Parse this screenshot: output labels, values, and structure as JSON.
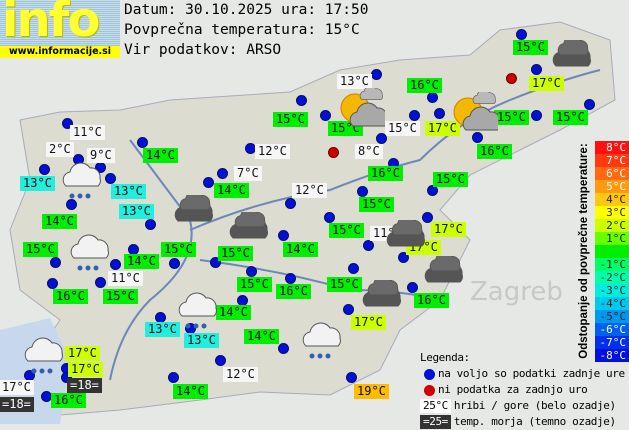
{
  "logo": {
    "text": "info",
    "url": "www.informacije.si"
  },
  "header": {
    "date_line": "Datum: 30.10.2025 ura: 17:50",
    "avg_line": "Povprečna temperatura: 15°C",
    "source_line": "Vir podatkov: ARSO"
  },
  "colors": {
    "green": "#00ee00",
    "yellowgreen": "#ccff00",
    "cyan": "#22eedd",
    "white": "#f6f6f6",
    "orange": "#ffbb00",
    "dark": "#333333",
    "station_dot": "#0010d8",
    "no_data_dot": "#d00000"
  },
  "stations": [
    {
      "temp": "15°C",
      "bg": "green"
    },
    {
      "temp": "17°C",
      "bg": "yellowgreen"
    },
    {
      "temp": "15°C",
      "bg": "green"
    },
    {
      "temp": "15°C",
      "bg": "green"
    },
    {
      "temp": "13°C",
      "bg": "white"
    },
    {
      "temp": "16°C",
      "bg": "green"
    },
    {
      "temp": "15°C",
      "bg": "green"
    },
    {
      "temp": "15°C",
      "bg": "white"
    },
    {
      "temp": "17°C",
      "bg": "yellowgreen"
    },
    {
      "temp": "15°C",
      "bg": "green"
    },
    {
      "temp": "16°C",
      "bg": "green"
    },
    {
      "temp": "8°C",
      "bg": "white"
    },
    {
      "temp": "16°C",
      "bg": "green"
    },
    {
      "temp": "15°C",
      "bg": "green"
    },
    {
      "temp": "11°C",
      "bg": "white"
    },
    {
      "temp": "2°C",
      "bg": "white"
    },
    {
      "temp": "9°C",
      "bg": "white"
    },
    {
      "temp": "14°C",
      "bg": "green"
    },
    {
      "temp": "12°C",
      "bg": "white"
    },
    {
      "temp": "13°C",
      "bg": "cyan"
    },
    {
      "temp": "13°C",
      "bg": "cyan"
    },
    {
      "temp": "7°C",
      "bg": "white"
    },
    {
      "temp": "14°C",
      "bg": "green"
    },
    {
      "temp": "12°C",
      "bg": "white"
    },
    {
      "temp": "13°C",
      "bg": "cyan"
    },
    {
      "temp": "15°C",
      "bg": "green"
    },
    {
      "temp": "14°C",
      "bg": "green"
    },
    {
      "temp": "15°C",
      "bg": "green"
    },
    {
      "temp": "11°C",
      "bg": "white"
    },
    {
      "temp": "17°C",
      "bg": "yellowgreen"
    },
    {
      "temp": "15°C",
      "bg": "green"
    },
    {
      "temp": "15°C",
      "bg": "green"
    },
    {
      "temp": "15°C",
      "bg": "green"
    },
    {
      "temp": "14°C",
      "bg": "green"
    },
    {
      "temp": "17°C",
      "bg": "yellowgreen"
    },
    {
      "temp": "14°C",
      "bg": "green"
    },
    {
      "temp": "11°C",
      "bg": "white"
    },
    {
      "temp": "16°C",
      "bg": "green"
    },
    {
      "temp": "15°C",
      "bg": "green"
    },
    {
      "temp": "15°C",
      "bg": "green"
    },
    {
      "temp": "16°C",
      "bg": "green"
    },
    {
      "temp": "15°C",
      "bg": "green"
    },
    {
      "temp": "16°C",
      "bg": "green"
    },
    {
      "temp": "17°C",
      "bg": "yellowgreen"
    },
    {
      "temp": "14°C",
      "bg": "green"
    },
    {
      "temp": "13°C",
      "bg": "cyan"
    },
    {
      "temp": "13°C",
      "bg": "cyan"
    },
    {
      "temp": "14°C",
      "bg": "green"
    },
    {
      "temp": "17°C",
      "bg": "yellowgreen"
    },
    {
      "temp": "17°C",
      "bg": "yellowgreen"
    },
    {
      "temp": "=18=",
      "bg": "dark"
    },
    {
      "temp": "17°C",
      "bg": "white"
    },
    {
      "temp": "=18=",
      "bg": "dark"
    },
    {
      "temp": "16°C",
      "bg": "green"
    },
    {
      "temp": "12°C",
      "bg": "white"
    },
    {
      "temp": "14°C",
      "bg": "green"
    },
    {
      "temp": "19°C",
      "bg": "orange"
    }
  ],
  "weather_icons": [
    "sun-cloud",
    "sun-cloud",
    "dark-cloud",
    "rain-cloud",
    "rain-cloud",
    "rain-cloud",
    "rain-cloud",
    "rain-cloud",
    "dark-cloud",
    "dark-cloud",
    "dark-cloud",
    "dark-cloud",
    "dark-cloud"
  ],
  "scale": {
    "title": "Odstopanje od povprečne temperature:",
    "steps": [
      {
        "label": "8°C",
        "color": "#ff1010"
      },
      {
        "label": "7°C",
        "color": "#ff3a10"
      },
      {
        "label": "6°C",
        "color": "#ff6a10"
      },
      {
        "label": "5°C",
        "color": "#ff9a10"
      },
      {
        "label": "4°C",
        "color": "#ffc810"
      },
      {
        "label": "3°C",
        "color": "#ffff00"
      },
      {
        "label": "2°C",
        "color": "#ccff00"
      },
      {
        "label": "1°C",
        "color": "#66ff00"
      },
      {
        "label": "",
        "color": "#00ee00"
      },
      {
        "label": "-1°C",
        "color": "#00ff66"
      },
      {
        "label": "-2°C",
        "color": "#00ffaa"
      },
      {
        "label": "-3°C",
        "color": "#00eedd"
      },
      {
        "label": "-4°C",
        "color": "#00c8ee"
      },
      {
        "label": "-5°C",
        "color": "#0098ee"
      },
      {
        "label": "-6°C",
        "color": "#0060ee"
      },
      {
        "label": "-7°C",
        "color": "#0030ee"
      },
      {
        "label": "-8°C",
        "color": "#0010dd"
      }
    ]
  },
  "legend": {
    "title": "Legenda:",
    "available": "na voljo so podatki zadnje ure",
    "no_data": "ni podatka za zadnjo uro",
    "hills_sample": "25°C",
    "hills": "hribi / gore (belo ozadje)",
    "sea_sample": "=25=",
    "sea": "temp. morja (temno ozadje)"
  },
  "map_labels": {
    "zagreb": "Zagreb"
  }
}
